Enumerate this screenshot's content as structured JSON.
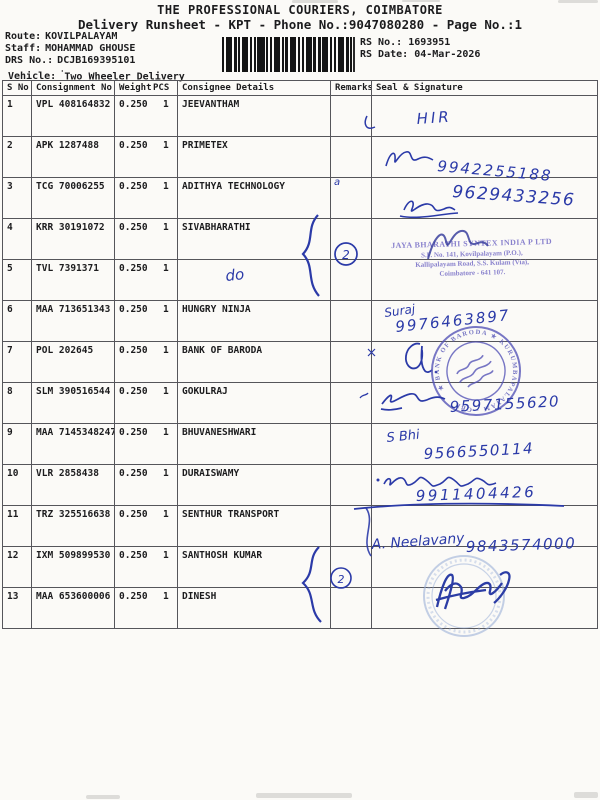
{
  "page": {
    "title": "THE PROFESSIONAL COURIERS, COIMBATORE",
    "subtitle": "Delivery Runsheet - KPT - Phone No.:9047080280 - Page No.:1"
  },
  "meta": {
    "route_label": "Route:",
    "route": "KOVILPALAYAM",
    "staff_label": "Staff:",
    "staff": "MOHAMMAD GHOUSE",
    "drs_label": "DRS No.:",
    "drs": "DCJB169395101",
    "vehicle_label": "Vehicle:",
    "vehicle": "Two Wheeler Delivery",
    "rs_no_label": "RS No.:",
    "rs_no": "1693951",
    "rs_date_label": "RS Date:",
    "rs_date": "04-Mar-2026"
  },
  "table": {
    "headers": {
      "sno": "S No",
      "consignment": "Consignment No",
      "weight": "Weight",
      "pcs": "PCS",
      "consignee": "Consignee Details",
      "remarks": "Remarks",
      "seal": "Seal & Signature"
    },
    "rows": [
      {
        "sno": "1",
        "consignment": "VPL 408164832",
        "weight": "0.250",
        "pcs": "1",
        "consignee": "JEEVANTHAM"
      },
      {
        "sno": "2",
        "consignment": "APK 1287488",
        "weight": "0.250",
        "pcs": "1",
        "consignee": "PRIMETEX"
      },
      {
        "sno": "3",
        "consignment": "TCG 70006255",
        "weight": "0.250",
        "pcs": "1",
        "consignee": "ADITHYA TECHNOLOGY"
      },
      {
        "sno": "4",
        "consignment": "KRR 30191072",
        "weight": "0.250",
        "pcs": "1",
        "consignee": "SIVABHARATHI"
      },
      {
        "sno": "5",
        "consignment": "TVL 7391371",
        "weight": "0.250",
        "pcs": "1",
        "consignee": ""
      },
      {
        "sno": "6",
        "consignment": "MAA 713651343",
        "weight": "0.250",
        "pcs": "1",
        "consignee": "HUNGRY NINJA"
      },
      {
        "sno": "7",
        "consignment": "POL 202645",
        "weight": "0.250",
        "pcs": "1",
        "consignee": "BANK OF BARODA"
      },
      {
        "sno": "8",
        "consignment": "SLM 390516544",
        "weight": "0.250",
        "pcs": "1",
        "consignee": "GOKULRAJ"
      },
      {
        "sno": "9",
        "consignment": "MAA 7145348247",
        "weight": "0.250",
        "pcs": "1",
        "consignee": "BHUVANESHWARI"
      },
      {
        "sno": "10",
        "consignment": "VLR 2858438",
        "weight": "0.250",
        "pcs": "1",
        "consignee": "DURAISWAMY"
      },
      {
        "sno": "11",
        "consignment": "TRZ 325516638",
        "weight": "0.250",
        "pcs": "1",
        "consignee": "SENTHUR TRANSPORT"
      },
      {
        "sno": "12",
        "consignment": "IXM 509899530",
        "weight": "0.250",
        "pcs": "1",
        "consignee": "SANTHOSH KUMAR"
      },
      {
        "sno": "13",
        "consignment": "MAA 653600006",
        "weight": "0.250",
        "pcs": "1",
        "consignee": "DINESH"
      }
    ]
  },
  "ink": {
    "row1_note": "HIR",
    "row2_phone": "9942255188",
    "row3_mark": "a",
    "row3_phone": "9629433256",
    "row5_ditto": "do",
    "row6_name": "Suraj",
    "row6_phone": "9976463897",
    "row8_phone": "9597155620",
    "row9_name": "S Bhi",
    "row9_phone": "9566550114",
    "row10_phone": "9911404426",
    "row11_name": "A. Neelavany",
    "row11_phone": "9843574000",
    "batch_count_1": "2",
    "batch_count_2": "2"
  },
  "stamps": {
    "rect_stamp": {
      "line1": "JAYA BHARATHI SYNTEX INDIA P LTD",
      "line2": "S.F. No. 141, Kovilpalayam (P.O.),",
      "line3": "Kallipalayam Road, S.S. Kulam (Via),",
      "line4": "Coimbatore - 641 107."
    },
    "round_stamp_text": "★ BANK OF BARODA ★ KURUMBAPALAYAM · CBE"
  },
  "colors": {
    "ink_blue": "#2b3aa8",
    "stamp_purple": "#7d75c9",
    "stamp_blue": "#5352b6",
    "stamp_faint": "#93aad6"
  }
}
